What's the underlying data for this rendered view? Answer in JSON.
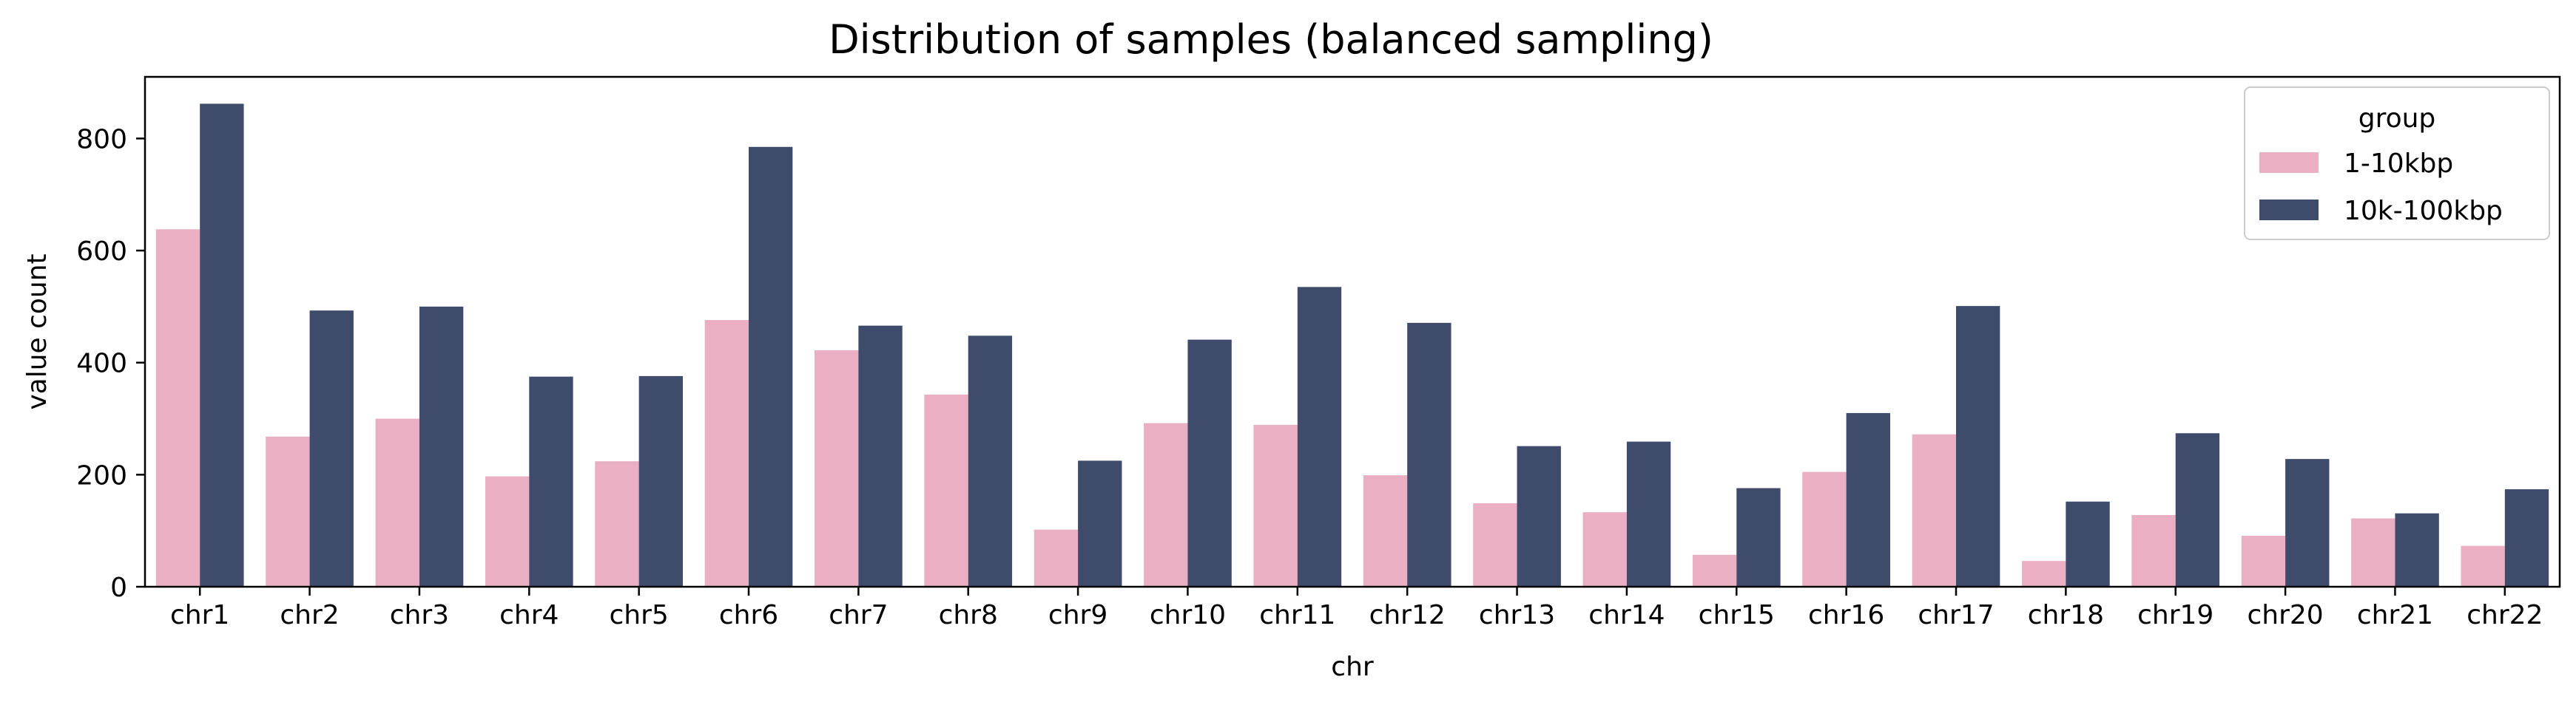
{
  "chart_data": {
    "type": "bar",
    "title": "Distribution of samples (balanced sampling)",
    "xlabel": "chr",
    "ylabel": "value count",
    "ylim": [
      0,
      910
    ],
    "yticks": [
      0,
      200,
      400,
      600,
      800
    ],
    "grid": false,
    "legend": {
      "title": "group",
      "placement": "top-right"
    },
    "categories": [
      "chr1",
      "chr2",
      "chr3",
      "chr4",
      "chr5",
      "chr6",
      "chr7",
      "chr8",
      "chr9",
      "chr10",
      "chr11",
      "chr12",
      "chr13",
      "chr14",
      "chr15",
      "chr16",
      "chr17",
      "chr18",
      "chr19",
      "chr20",
      "chr21",
      "chr22"
    ],
    "series": [
      {
        "name": "1-10kbp",
        "color": "#ebafc4",
        "values": [
          638,
          268,
          300,
          197,
          224,
          476,
          422,
          343,
          102,
          292,
          289,
          199,
          149,
          133,
          57,
          205,
          272,
          46,
          128,
          91,
          122,
          73
        ]
      },
      {
        "name": "10k-100kbp",
        "color": "#3f4b6a",
        "values": [
          862,
          493,
          500,
          375,
          376,
          785,
          466,
          448,
          225,
          441,
          535,
          471,
          251,
          259,
          176,
          310,
          501,
          152,
          274,
          228,
          131,
          174
        ]
      }
    ]
  }
}
